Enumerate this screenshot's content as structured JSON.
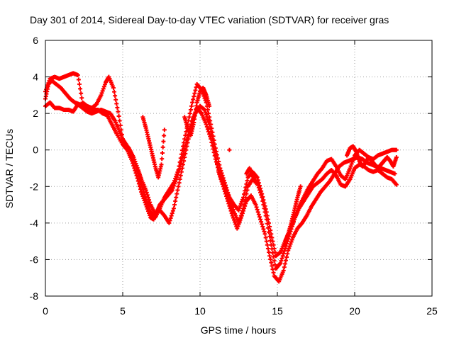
{
  "chart_data": {
    "type": "scatter",
    "title": "Day 301 of 2014, Sidereal Day-to-day VTEC variation (SDTVAR) for receiver gras",
    "xlabel": "GPS time / hours",
    "ylabel": "SDTVAR / TECUs",
    "xlim": [
      0,
      25
    ],
    "ylim": [
      -8,
      6
    ],
    "x_ticks": [
      "0",
      "5",
      "10",
      "15",
      "20",
      "25"
    ],
    "y_ticks": [
      "-8",
      "-6",
      "-4",
      "-2",
      "0",
      "2",
      "4",
      "6"
    ],
    "grid": true,
    "marker": "plus",
    "color": "#ff0000",
    "series": [
      {
        "x": [
          0.0,
          0.2,
          0.4,
          0.7,
          1.0,
          1.3,
          1.6,
          1.9,
          2.2,
          2.5,
          2.8,
          3.1,
          3.4,
          3.7,
          4.0,
          4.3,
          4.6,
          5.0,
          5.3,
          5.6,
          5.9,
          6.2,
          6.5,
          6.8,
          7.0,
          7.2,
          7.4,
          7.6,
          7.9,
          8.2,
          8.5,
          8.8,
          9.1,
          9.4,
          9.7,
          10.0,
          10.3,
          10.6,
          10.9,
          11.2,
          11.5,
          11.8,
          12.1,
          12.4,
          12.7,
          13.0,
          13.3,
          13.6,
          13.9,
          14.2,
          14.5,
          14.8,
          15.1,
          15.4,
          15.7,
          16.0,
          16.3,
          16.6,
          16.9,
          17.2,
          17.5,
          17.8,
          18.1,
          18.4,
          18.7,
          19.0,
          19.3,
          19.6,
          19.9,
          20.2,
          20.5,
          20.8,
          21.1,
          21.4,
          21.7,
          22.0,
          22.3,
          22.6
        ],
        "y": [
          2.8,
          3.6,
          3.8,
          3.6,
          3.4,
          3.1,
          2.8,
          2.6,
          2.5,
          2.4,
          2.3,
          2.2,
          2.2,
          2.0,
          1.9,
          1.4,
          0.9,
          0.3,
          0.0,
          -0.6,
          -1.4,
          -2.3,
          -3.0,
          -3.7,
          -3.8,
          -3.4,
          -3.0,
          -2.8,
          -2.5,
          -2.2,
          -1.5,
          -0.6,
          0.4,
          1.3,
          2.0,
          2.4,
          2.2,
          1.4,
          0.2,
          -1.2,
          -2.0,
          -2.8,
          -3.6,
          -4.3,
          -3.6,
          -2.8,
          -2.5,
          -3.0,
          -3.8,
          -4.6,
          -5.8,
          -6.9,
          -7.2,
          -6.6,
          -5.5,
          -4.8,
          -4.3,
          -4.0,
          -3.6,
          -3.1,
          -2.7,
          -2.3,
          -2.0,
          -1.7,
          -1.3,
          -0.9,
          -0.7,
          -0.6,
          -0.5,
          -0.4,
          -0.5,
          -0.7,
          -0.8,
          -0.9,
          -1.0,
          -1.1,
          -1.2,
          -1.3
        ]
      },
      {
        "x": [
          0.0,
          0.3,
          0.6,
          0.9,
          1.2,
          1.5,
          1.8,
          2.1,
          2.4,
          2.7,
          3.0,
          3.3,
          3.6,
          3.9,
          4.1,
          4.4,
          4.7,
          5.0,
          5.3,
          5.6,
          5.9,
          6.2,
          6.5,
          6.8,
          7.1,
          7.4,
          7.7,
          8.0,
          8.3,
          8.6,
          8.9,
          9.2,
          9.5,
          9.8,
          10.1,
          10.4,
          10.7,
          11.0,
          11.3,
          11.6,
          11.9,
          12.2,
          12.5,
          12.8,
          13.1,
          13.4,
          13.7,
          14.0,
          14.3,
          14.6,
          14.9,
          15.2,
          15.5,
          15.8,
          16.1,
          16.4,
          16.7,
          17.0,
          17.3,
          17.6,
          17.9,
          18.2,
          18.5,
          18.8,
          19.1,
          19.4,
          19.7,
          20.0,
          20.3,
          20.6,
          20.9,
          21.2,
          21.5,
          21.8,
          22.1,
          22.4,
          22.7
        ],
        "y": [
          3.2,
          3.9,
          4.0,
          3.9,
          4.0,
          4.1,
          4.2,
          4.1,
          2.6,
          2.4,
          2.3,
          2.5,
          3.0,
          3.7,
          4.0,
          3.4,
          2.1,
          0.6,
          0.2,
          -0.3,
          -1.0,
          -1.9,
          -2.7,
          -3.4,
          -3.7,
          -3.2,
          -2.6,
          -2.2,
          -1.8,
          -1.1,
          0.2,
          1.4,
          2.6,
          3.6,
          3.3,
          2.6,
          1.4,
          0.1,
          -1.0,
          -1.8,
          -2.6,
          -3.4,
          -4.0,
          -3.2,
          -2.0,
          -1.6,
          -1.8,
          -2.6,
          -3.8,
          -5.2,
          -6.5,
          -6.2,
          -5.4,
          -4.6,
          -3.8,
          -3.1,
          -2.6,
          -2.1,
          -1.7,
          -1.3,
          -1.0,
          -0.6,
          -0.5,
          -0.9,
          -1.4,
          -1.6,
          -1.0,
          -0.3,
          0.0,
          -0.2,
          -0.4,
          -0.5,
          -0.3,
          -0.2,
          -0.1,
          0.0,
          0.0
        ]
      },
      {
        "x": [
          0.0,
          0.3,
          0.6,
          0.9,
          1.2,
          1.5,
          1.8,
          2.1,
          2.4,
          2.7,
          3.0,
          3.3,
          3.6,
          3.9,
          4.2,
          4.5,
          4.8,
          5.1,
          5.4,
          5.7,
          6.0,
          6.2,
          6.5,
          6.8,
          7.1,
          7.4,
          7.7,
          8.0,
          8.3,
          8.6,
          8.9,
          9.2,
          9.5,
          9.8,
          10.1,
          10.4,
          10.7,
          11.0,
          11.3,
          11.6,
          11.9,
          12.2,
          12.5,
          12.8,
          13.1,
          13.4,
          13.7,
          14.0,
          14.3,
          14.6,
          14.9,
          15.2,
          15.5,
          15.8,
          16.1,
          16.4,
          16.7,
          17.0,
          17.3,
          17.6,
          17.9,
          18.2,
          18.5,
          18.8,
          19.1,
          19.4,
          19.7,
          20.0,
          20.3,
          20.6,
          20.9,
          21.2,
          21.5,
          21.8,
          22.1,
          22.4,
          22.7
        ],
        "y": [
          2.4,
          2.6,
          2.3,
          2.3,
          2.2,
          2.2,
          2.1,
          2.5,
          2.3,
          2.1,
          2.0,
          2.1,
          2.2,
          2.1,
          2.0,
          1.6,
          1.0,
          0.4,
          0.1,
          -0.4,
          -1.1,
          -1.6,
          -2.2,
          -3.0,
          -3.5,
          -3.3,
          -3.6,
          -4.0,
          -3.2,
          -2.0,
          -0.8,
          0.4,
          1.6,
          2.3,
          2.0,
          1.4,
          0.6,
          -0.5,
          -1.4,
          -2.1,
          -2.6,
          -3.0,
          -3.3,
          -2.6,
          -1.5,
          -1.2,
          -1.5,
          -2.4,
          -3.4,
          -4.6,
          -5.8,
          -5.6,
          -5.0,
          -4.4,
          -3.8,
          -3.2,
          -2.8,
          -2.4,
          -2.0,
          -1.8,
          -1.6,
          -1.3,
          -1.1,
          -1.4,
          -1.9,
          -2.0,
          -1.6,
          -1.0,
          -0.8,
          -0.9,
          -1.1,
          -1.2,
          -1.1,
          -1.3,
          -1.5,
          -1.6,
          -1.9
        ]
      },
      {
        "x": [
          6.3,
          6.5,
          6.7,
          6.9,
          7.1,
          7.3,
          7.5,
          7.7,
          9.0,
          9.2,
          9.4,
          9.6,
          9.8,
          10.0,
          10.2,
          10.4,
          10.6,
          11.9,
          13.0,
          13.2,
          13.4,
          13.6,
          15.5,
          15.7,
          15.9,
          16.1,
          16.3,
          16.5,
          19.5,
          19.7,
          19.9,
          20.1,
          20.3,
          20.5,
          20.7,
          20.9,
          21.1,
          21.3,
          21.5,
          21.7,
          21.9,
          22.1,
          22.3,
          22.5,
          22.7
        ],
        "y": [
          1.8,
          1.2,
          0.5,
          -0.2,
          -0.9,
          -1.5,
          -0.8,
          1.1,
          1.8,
          1.2,
          0.8,
          1.5,
          2.6,
          3.2,
          3.4,
          3.0,
          2.4,
          0.0,
          -1.3,
          -1.0,
          -1.4,
          -1.8,
          -5.0,
          -4.6,
          -4.0,
          -3.3,
          -2.6,
          -2.0,
          -0.3,
          0.1,
          0.2,
          -0.1,
          -0.6,
          -0.9,
          -0.7,
          -0.4,
          -0.6,
          -0.8,
          -1.0,
          -0.8,
          -0.6,
          -0.4,
          -0.6,
          -0.9,
          -0.4
        ]
      }
    ]
  }
}
